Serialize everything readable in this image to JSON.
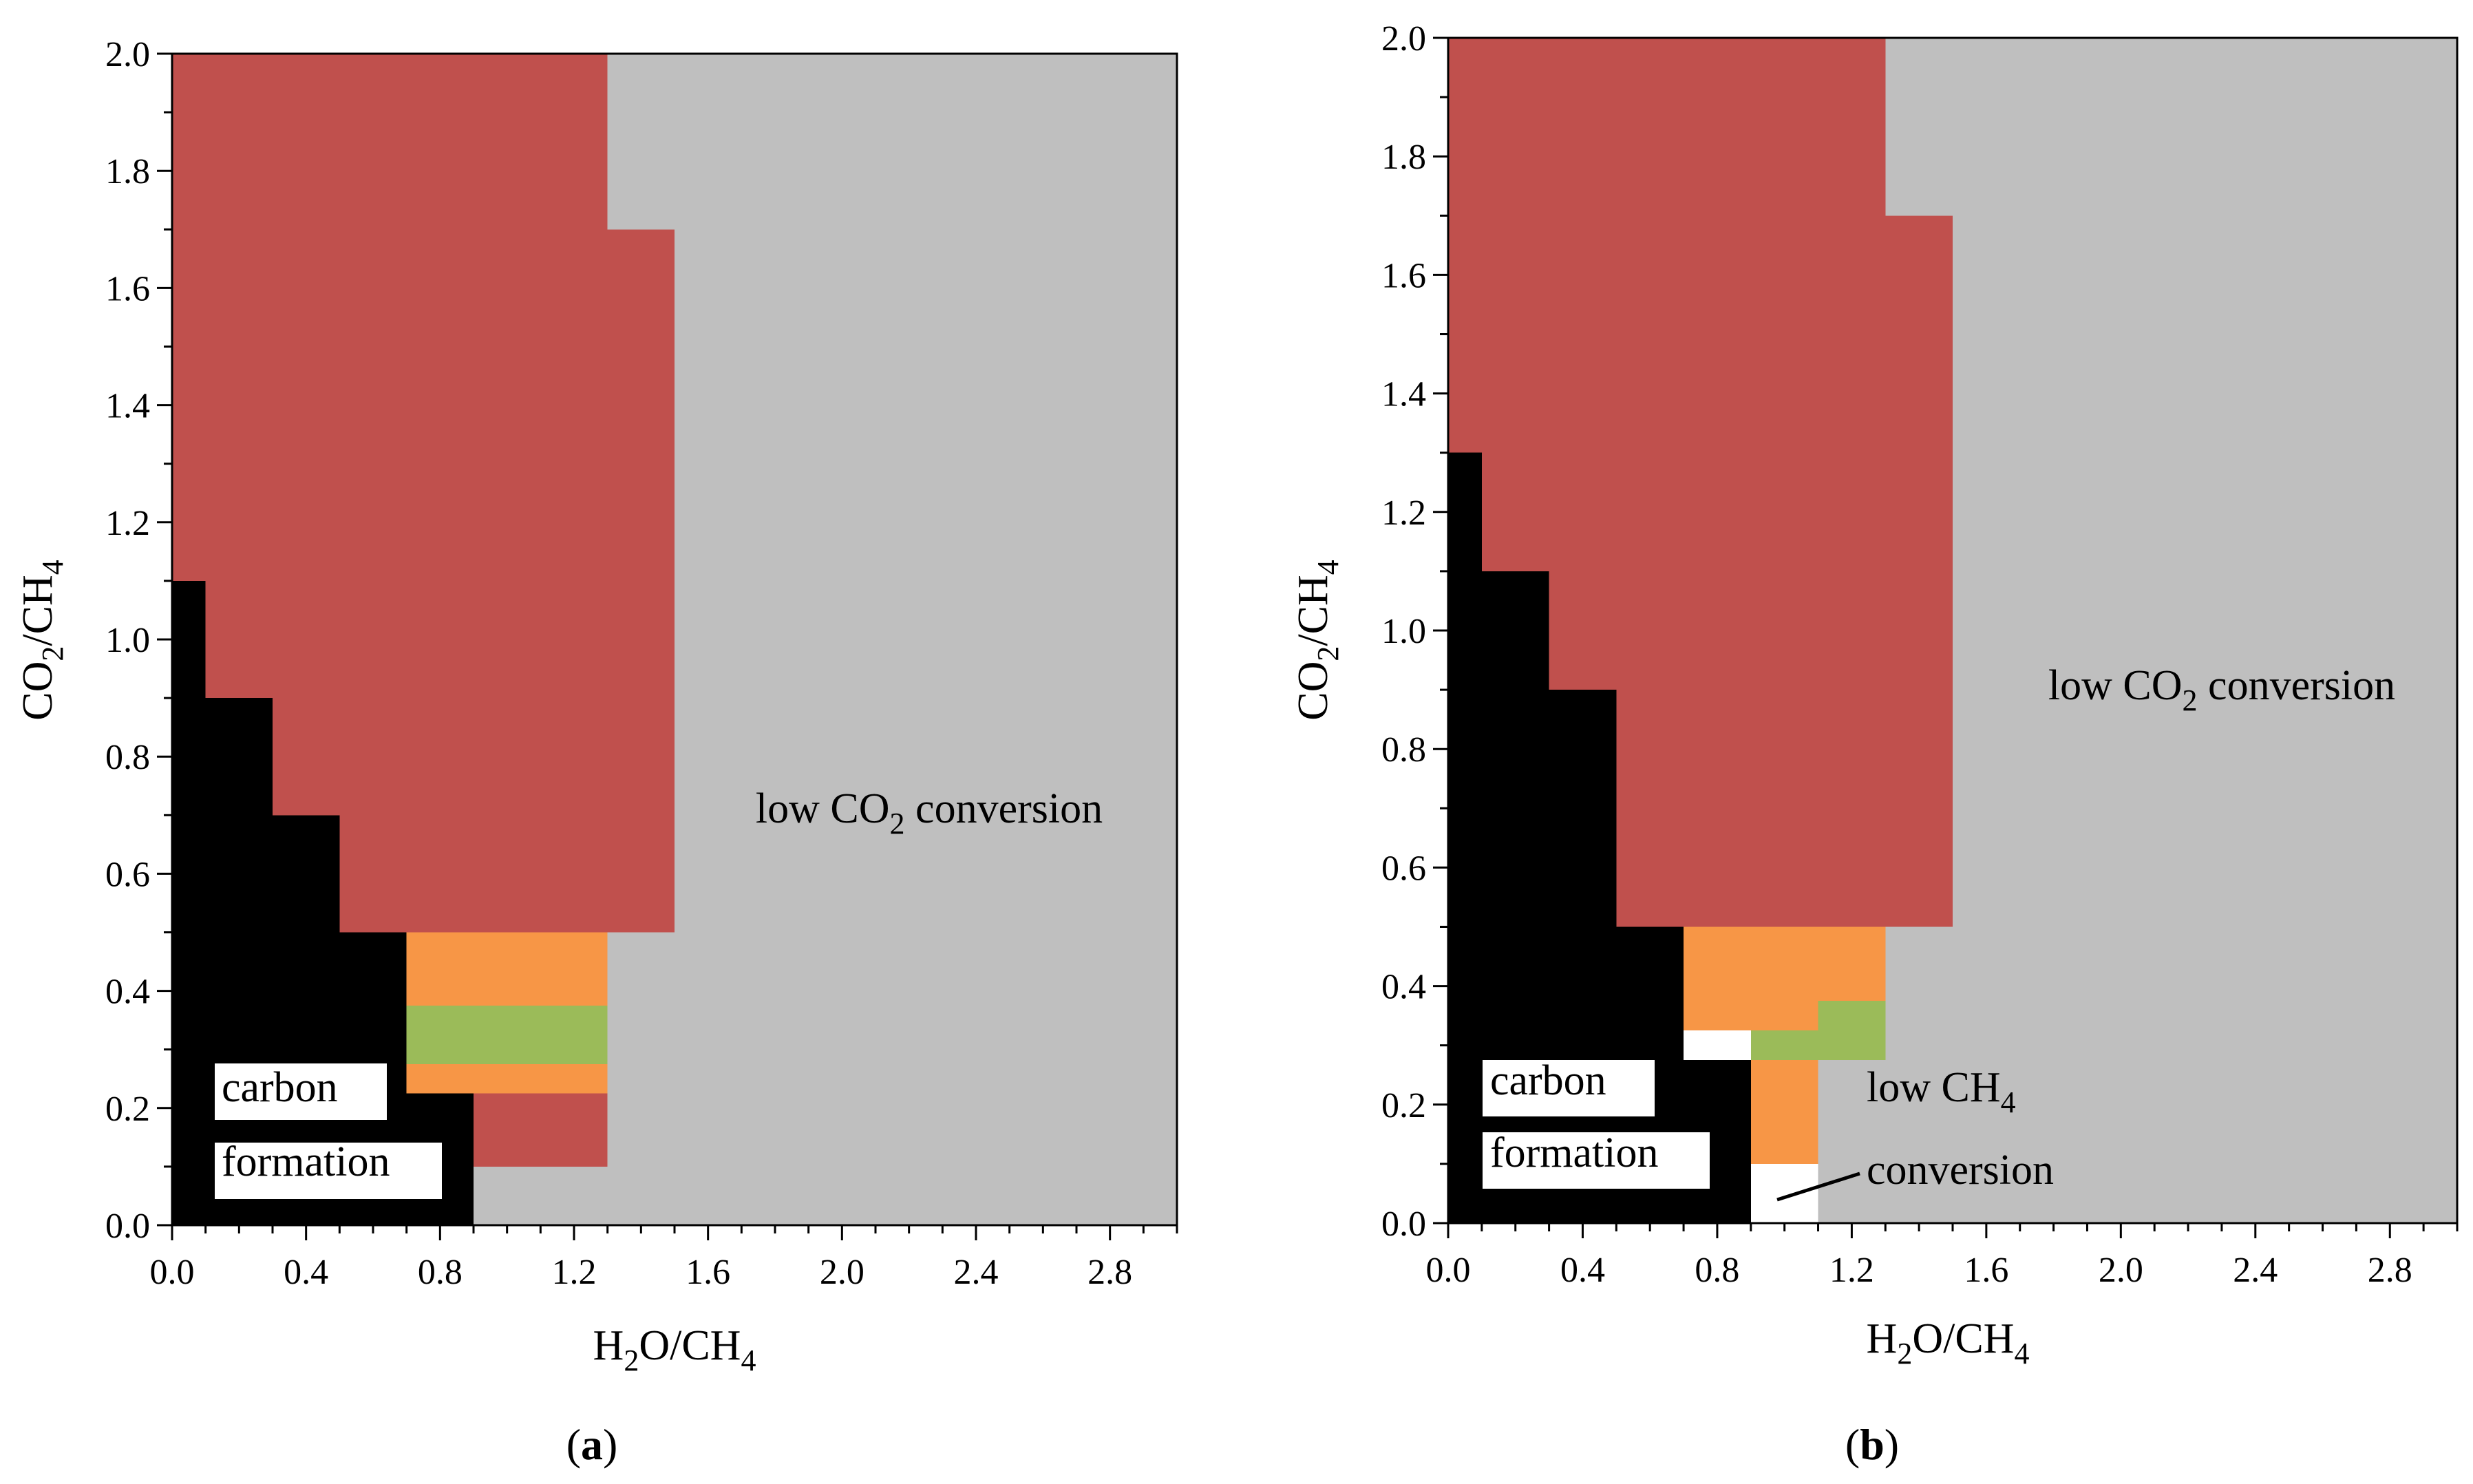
{
  "figure": {
    "panels": [
      "a",
      "b"
    ]
  },
  "colors": {
    "red": "#C0504D",
    "gray": "#BFBFBF",
    "orange": "#F79646",
    "green": "#9BBB59",
    "black": "#000000",
    "white": "#FFFFFF"
  },
  "chart_data": [
    {
      "type": "heatmap",
      "panel_label": "a",
      "xlabel": {
        "main1": "H",
        "sub1": "2",
        "main2": "O/CH",
        "sub2": "4"
      },
      "ylabel": {
        "main1": "CO",
        "sub1": "2",
        "main2": "/CH",
        "sub2": "4"
      },
      "xlim": [
        0,
        3.0
      ],
      "ylim": [
        0,
        2.0
      ],
      "xticks": [
        "0.0",
        "0.4",
        "0.8",
        "1.2",
        "1.6",
        "2.0",
        "2.4",
        "2.8"
      ],
      "yticks": [
        "0.0",
        "0.2",
        "0.4",
        "0.6",
        "0.8",
        "1.0",
        "1.2",
        "1.4",
        "1.6",
        "1.8",
        "2.0"
      ],
      "annotations": {
        "low_co2": {
          "pre": "low CO",
          "sub": "2",
          "post": " conversion"
        },
        "carbon_line1": "carbon",
        "carbon_line2": "formation"
      },
      "regions": [
        {
          "color": "gray",
          "x0": 0,
          "x1": 3.0,
          "y0": 0,
          "y1": 2.0
        },
        {
          "color": "red",
          "x0": 0,
          "x1": 1.3,
          "y0": 0.5,
          "y1": 2.0
        },
        {
          "color": "red",
          "x0": 1.3,
          "x1": 1.5,
          "y0": 0.5,
          "y1": 1.7
        },
        {
          "color": "black",
          "x0": 0,
          "x1": 0.1,
          "y0": 0,
          "y1": 1.1
        },
        {
          "color": "black",
          "x0": 0.1,
          "x1": 0.3,
          "y0": 0,
          "y1": 0.9
        },
        {
          "color": "black",
          "x0": 0.3,
          "x1": 0.5,
          "y0": 0,
          "y1": 0.7
        },
        {
          "color": "black",
          "x0": 0.5,
          "x1": 0.7,
          "y0": 0,
          "y1": 0.5
        },
        {
          "color": "black",
          "x0": 0.7,
          "x1": 0.9,
          "y0": 0,
          "y1": 0.225
        },
        {
          "color": "orange",
          "x0": 0.7,
          "x1": 1.3,
          "y0": 0.375,
          "y1": 0.5
        },
        {
          "color": "green",
          "x0": 0.7,
          "x1": 1.3,
          "y0": 0.275,
          "y1": 0.375
        },
        {
          "color": "orange",
          "x0": 0.7,
          "x1": 1.3,
          "y0": 0.225,
          "y1": 0.275
        },
        {
          "color": "red",
          "x0": 0.9,
          "x1": 1.3,
          "y0": 0.1,
          "y1": 0.225
        }
      ]
    },
    {
      "type": "heatmap",
      "panel_label": "b",
      "xlabel": {
        "main1": "H",
        "sub1": "2",
        "main2": "O/CH",
        "sub2": "4"
      },
      "ylabel": {
        "main1": "CO",
        "sub1": "2",
        "main2": "/CH",
        "sub2": "4"
      },
      "xlim": [
        0,
        3.0
      ],
      "ylim": [
        0,
        2.0
      ],
      "xticks": [
        "0.0",
        "0.4",
        "0.8",
        "1.2",
        "1.6",
        "2.0",
        "2.4",
        "2.8"
      ],
      "yticks": [
        "0.0",
        "0.2",
        "0.4",
        "0.6",
        "0.8",
        "1.0",
        "1.2",
        "1.4",
        "1.6",
        "1.8",
        "2.0"
      ],
      "annotations": {
        "low_co2": {
          "pre": "low CO",
          "sub": "2",
          "post": " conversion"
        },
        "carbon_line1": "carbon",
        "carbon_line2": "formation",
        "low_ch4_line1": {
          "pre": "low CH",
          "sub": "4"
        },
        "low_ch4_line2": "conversion"
      },
      "regions": [
        {
          "color": "gray",
          "x0": 0,
          "x1": 3.0,
          "y0": 0,
          "y1": 2.0
        },
        {
          "color": "red",
          "x0": 0,
          "x1": 1.3,
          "y0": 0.5,
          "y1": 2.0
        },
        {
          "color": "red",
          "x0": 1.3,
          "x1": 1.5,
          "y0": 0.5,
          "y1": 1.7
        },
        {
          "color": "black",
          "x0": 0,
          "x1": 0.1,
          "y0": 0,
          "y1": 1.3
        },
        {
          "color": "black",
          "x0": 0.1,
          "x1": 0.3,
          "y0": 0,
          "y1": 1.1
        },
        {
          "color": "black",
          "x0": 0.3,
          "x1": 0.5,
          "y0": 0,
          "y1": 0.9
        },
        {
          "color": "black",
          "x0": 0.5,
          "x1": 0.7,
          "y0": 0,
          "y1": 0.5
        },
        {
          "color": "black",
          "x0": 0.7,
          "x1": 0.9,
          "y0": 0,
          "y1": 0.275
        },
        {
          "color": "white",
          "x0": 0.7,
          "x1": 0.9,
          "y0": 0.275,
          "y1": 0.325
        },
        {
          "color": "orange",
          "x0": 0.7,
          "x1": 1.3,
          "y0": 0.375,
          "y1": 0.5
        },
        {
          "color": "orange",
          "x0": 0.7,
          "x1": 1.1,
          "y0": 0.325,
          "y1": 0.375
        },
        {
          "color": "green",
          "x0": 0.9,
          "x1": 1.1,
          "y0": 0.275,
          "y1": 0.325
        },
        {
          "color": "green",
          "x0": 1.1,
          "x1": 1.3,
          "y0": 0.275,
          "y1": 0.375
        },
        {
          "color": "orange",
          "x0": 0.9,
          "x1": 1.1,
          "y0": 0.1,
          "y1": 0.275
        },
        {
          "color": "white",
          "x0": 0.9,
          "x1": 1.1,
          "y0": 0,
          "y1": 0.1
        }
      ]
    }
  ]
}
